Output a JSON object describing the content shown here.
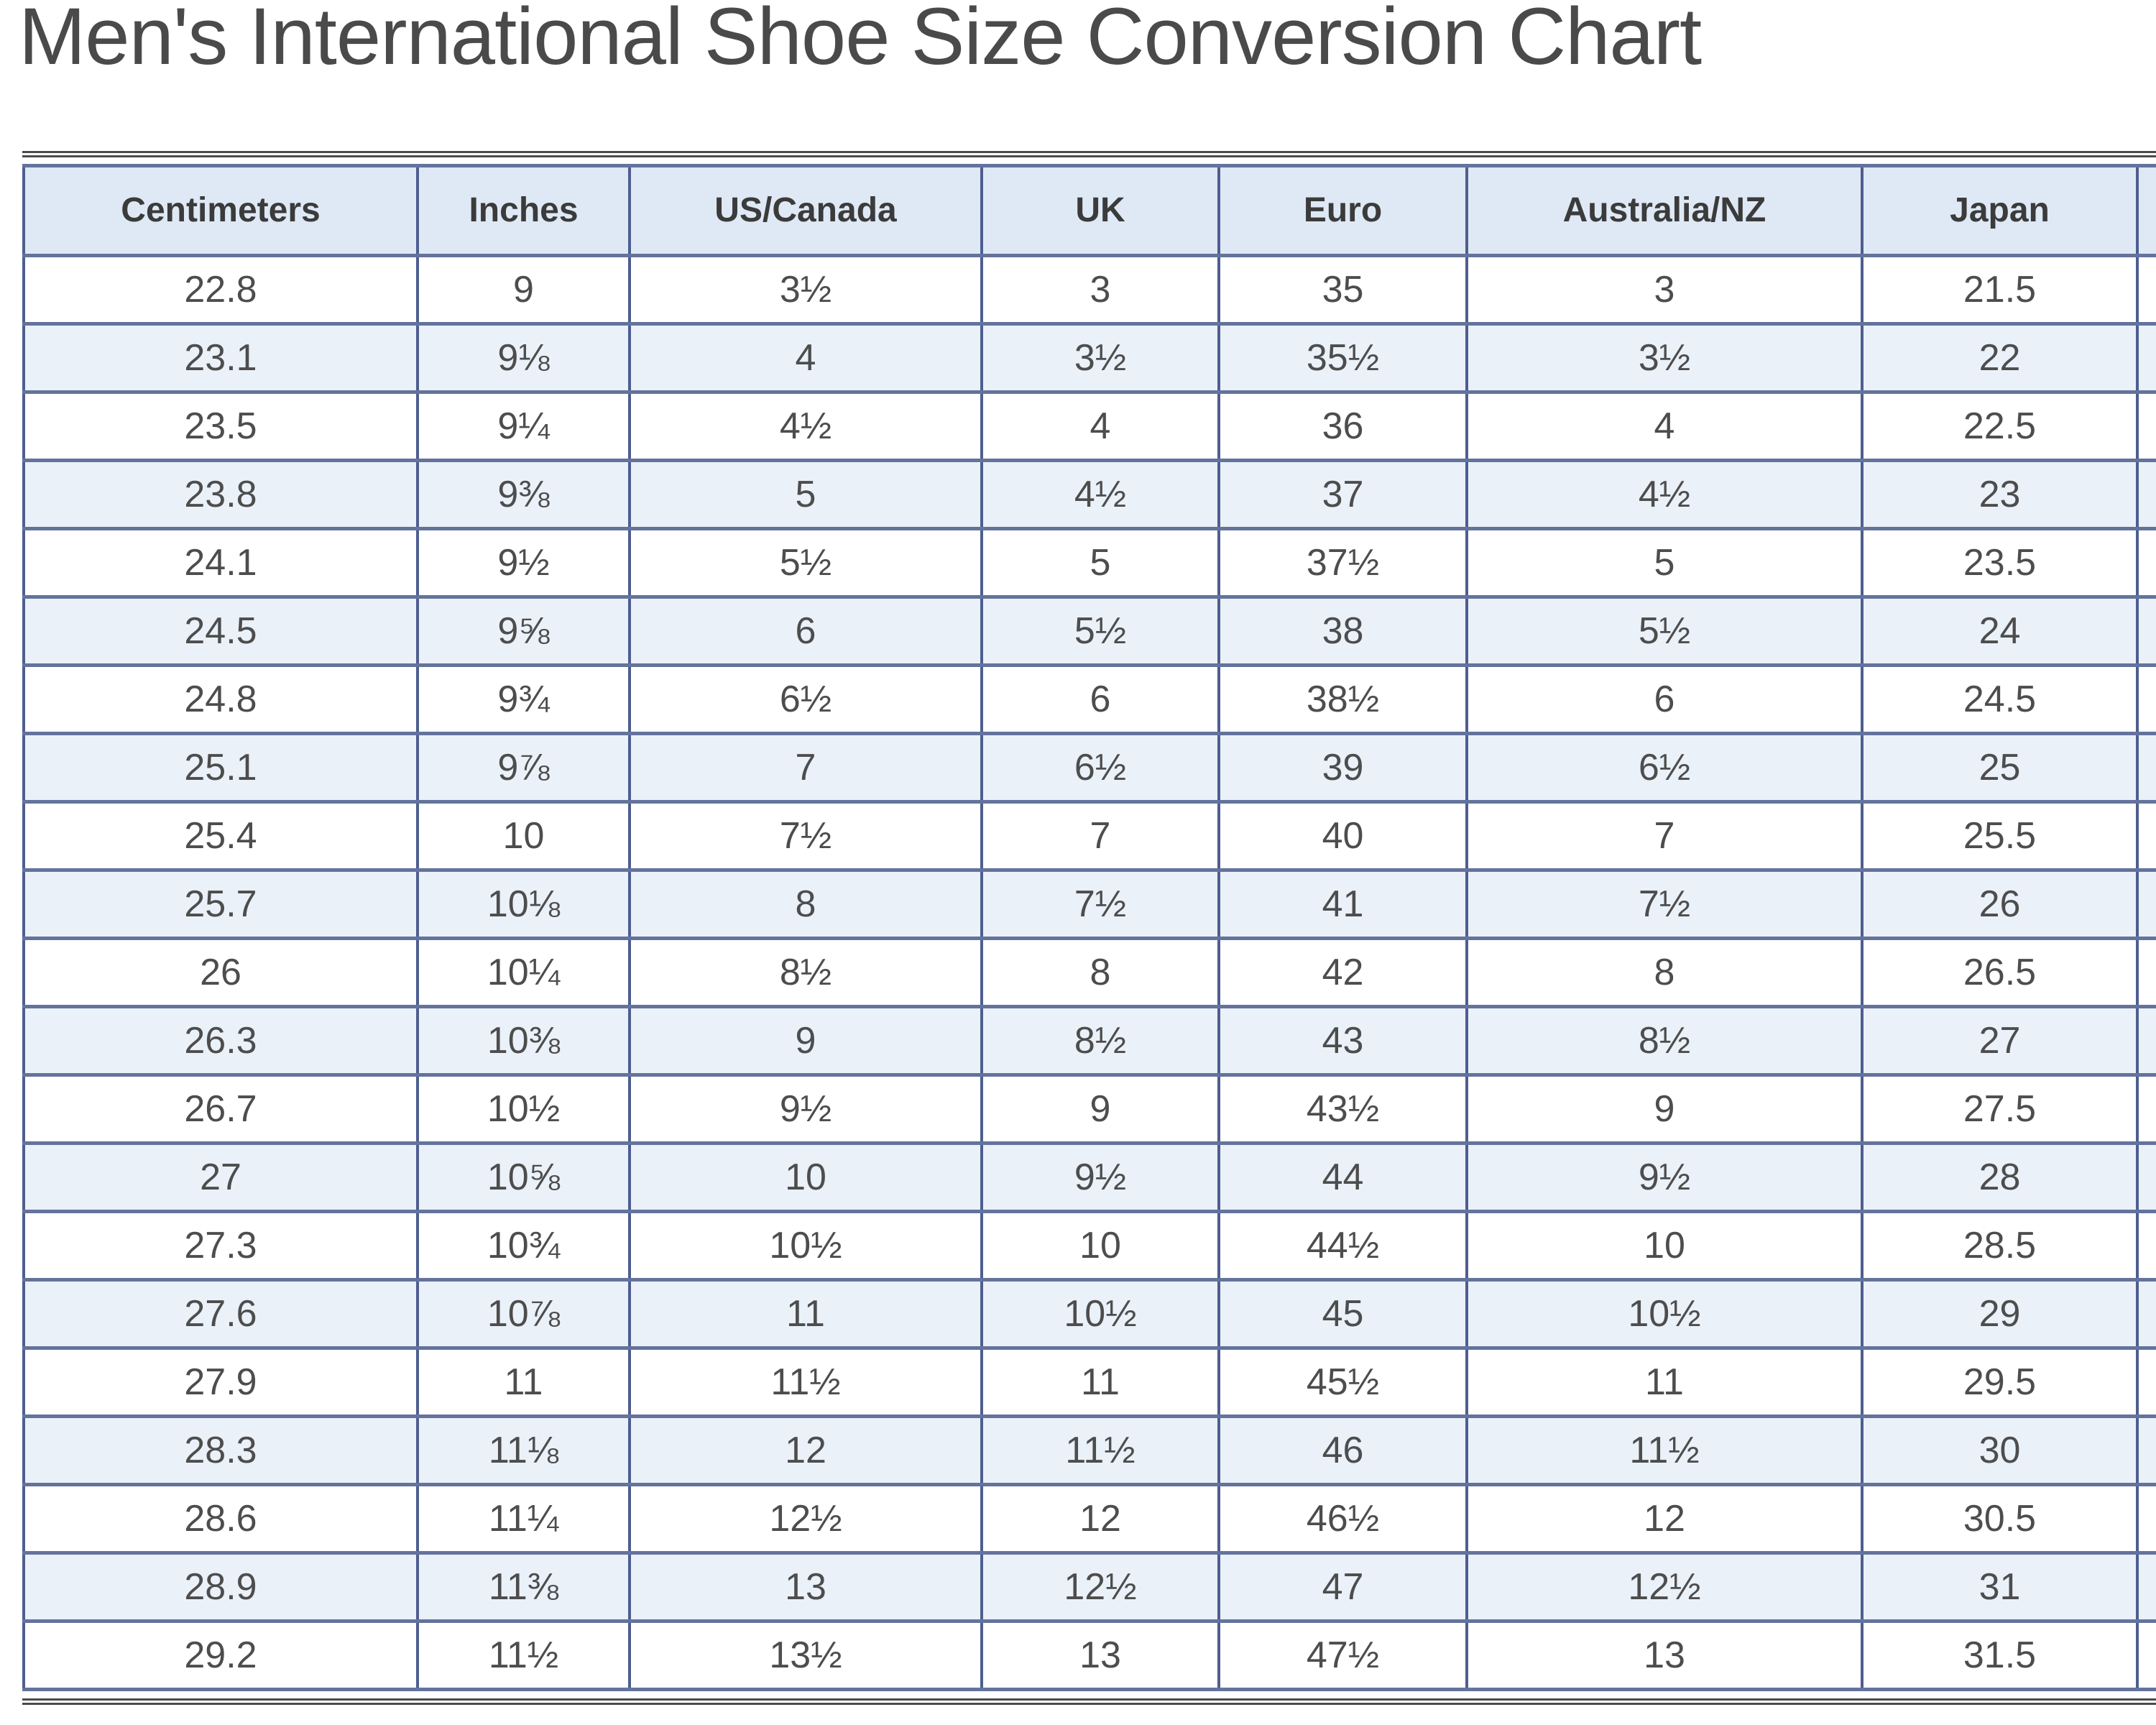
{
  "page": {
    "title": "Men's International Shoe Size Conversion Chart"
  },
  "table": {
    "columns": [
      "Centimeters",
      "Inches",
      "US/Canada",
      "UK",
      "Euro",
      "Australia/NZ",
      "Japan"
    ],
    "rows": [
      [
        "22.8",
        "9",
        "3½",
        "3",
        "35",
        "3",
        "21.5"
      ],
      [
        "23.1",
        "9⅛",
        "4",
        "3½",
        "35½",
        "3½",
        "22"
      ],
      [
        "23.5",
        "9¼",
        "4½",
        "4",
        "36",
        "4",
        "22.5"
      ],
      [
        "23.8",
        "9⅜",
        "5",
        "4½",
        "37",
        "4½",
        "23"
      ],
      [
        "24.1",
        "9½",
        "5½",
        "5",
        "37½",
        "5",
        "23.5"
      ],
      [
        "24.5",
        "9⅝",
        "6",
        "5½",
        "38",
        "5½",
        "24"
      ],
      [
        "24.8",
        "9¾",
        "6½",
        "6",
        "38½",
        "6",
        "24.5"
      ],
      [
        "25.1",
        "9⅞",
        "7",
        "6½",
        "39",
        "6½",
        "25"
      ],
      [
        "25.4",
        "10",
        "7½",
        "7",
        "40",
        "7",
        "25.5"
      ],
      [
        "25.7",
        "10⅛",
        "8",
        "7½",
        "41",
        "7½",
        "26"
      ],
      [
        "26",
        "10¼",
        "8½",
        "8",
        "42",
        "8",
        "26.5"
      ],
      [
        "26.3",
        "10⅜",
        "9",
        "8½",
        "43",
        "8½",
        "27"
      ],
      [
        "26.7",
        "10½",
        "9½",
        "9",
        "43½",
        "9",
        "27.5"
      ],
      [
        "27",
        "10⅝",
        "10",
        "9½",
        "44",
        "9½",
        "28"
      ],
      [
        "27.3",
        "10¾",
        "10½",
        "10",
        "44½",
        "10",
        "28.5"
      ],
      [
        "27.6",
        "10⅞",
        "11",
        "10½",
        "45",
        "10½",
        "29"
      ],
      [
        "27.9",
        "11",
        "11½",
        "11",
        "45½",
        "11",
        "29.5"
      ],
      [
        "28.3",
        "11⅛",
        "12",
        "11½",
        "46",
        "11½",
        "30"
      ],
      [
        "28.6",
        "11¼",
        "12½",
        "12",
        "46½",
        "12",
        "30.5"
      ],
      [
        "28.9",
        "11⅜",
        "13",
        "12½",
        "47",
        "12½",
        "31"
      ],
      [
        "29.2",
        "11½",
        "13½",
        "13",
        "47½",
        "13",
        "31.5"
      ]
    ]
  },
  "colors": {
    "header_bg": "#dfe9f5",
    "alt_row_bg": "#eaf1f9",
    "row_bg": "#ffffff",
    "vertical_border": "#4e5e90",
    "horizontal_border": "#64739c",
    "outer_rule": "#4b4b4b",
    "title_text": "#4a4a4a",
    "header_text": "#3b3b3b",
    "cell_text": "#4d4d4d"
  }
}
